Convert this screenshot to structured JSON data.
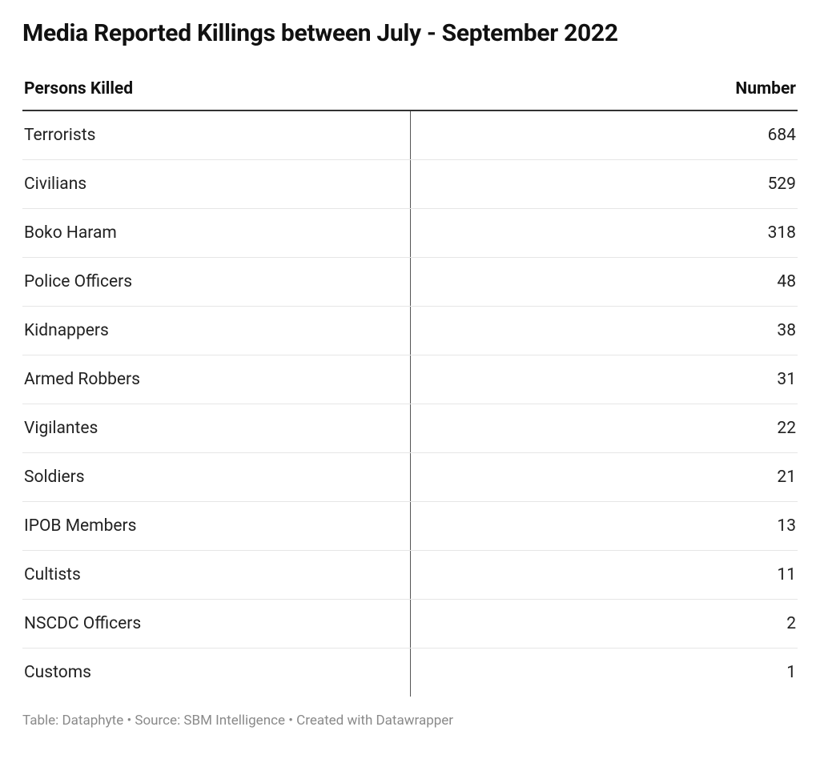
{
  "title": "Media Reported Killings between July - September 2022",
  "table": {
    "type": "table",
    "columns": [
      {
        "label": "Persons Killed",
        "align": "left",
        "width_pct": 50
      },
      {
        "label": "Number",
        "align": "right",
        "width_pct": 50
      }
    ],
    "rows": [
      [
        "Terrorists",
        684
      ],
      [
        "Civilians",
        529
      ],
      [
        "Boko Haram",
        318
      ],
      [
        "Police Officers",
        48
      ],
      [
        "Kidnappers",
        38
      ],
      [
        "Armed Robbers",
        31
      ],
      [
        "Vigilantes",
        22
      ],
      [
        "Soldiers",
        21
      ],
      [
        "IPOB Members",
        13
      ],
      [
        "Cultists",
        11
      ],
      [
        "NSCDC Officers",
        2
      ],
      [
        "Customs",
        1
      ]
    ],
    "header_border_color": "#333333",
    "row_border_color": "#e6e6e6",
    "divider_border_color": "#555555",
    "background_color": "#ffffff",
    "text_color": "#222222",
    "header_fontsize": 21,
    "body_fontsize": 21,
    "title_fontsize": 30,
    "footer_fontsize": 17,
    "footer_color": "#8a8a8a"
  },
  "footer": "Table: Dataphyte • Source: SBM Intelligence • Created with Datawrapper"
}
